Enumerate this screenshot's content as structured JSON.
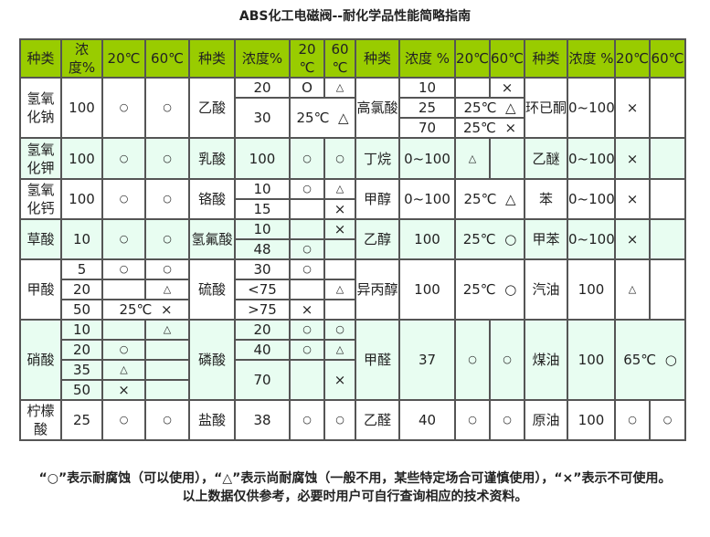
{
  "title": "ABS化工电磁阀--耐化学品性能简略指南",
  "t": {
    "h": [
      "种类",
      "浓度%",
      "20℃",
      "60℃",
      "种类",
      "浓度%",
      "20 ℃",
      "60 ℃",
      "种类",
      "浓度 %",
      "20℃",
      "60℃",
      "种类",
      "浓度 %",
      "20℃",
      "60℃"
    ],
    "r1": [
      "氢氧化钠",
      "100",
      "○",
      "○",
      "乙酸",
      "20",
      "O",
      "△",
      "高氯酸",
      "10",
      "",
      "×",
      "环已酮",
      "0~100",
      "×",
      ""
    ],
    "r2": [
      "30",
      "25℃  △",
      "25",
      "25℃  △"
    ],
    "r3": [
      "70",
      "25℃  ×"
    ],
    "r4": [
      "氢氧化钾",
      "100",
      "○",
      "○",
      "乳酸",
      "100",
      "○",
      "○",
      "丁烷",
      "0~100",
      "△",
      "",
      "乙醚",
      "0~100",
      "×",
      ""
    ],
    "r5": [
      "氢氧化钙",
      "100",
      "○",
      "○",
      "铬酸",
      "10",
      "○",
      "△",
      "甲醇",
      "0~100",
      "25℃  △",
      "苯",
      "0~100",
      "×",
      ""
    ],
    "r6": [
      "15",
      "",
      "×"
    ],
    "r7": [
      "草酸",
      "10",
      "○",
      "○",
      "氢氟酸",
      "10",
      "",
      "×",
      "乙醇",
      "100",
      "25℃  ○",
      "甲苯",
      "0~100",
      "×",
      ""
    ],
    "r8": [
      "48",
      "○",
      ""
    ],
    "r9": [
      "甲酸",
      "5",
      "○",
      "○",
      "硫酸",
      "30",
      "○",
      "",
      "异丙醇",
      "100",
      "25℃  ○",
      "汽油",
      "100",
      "△",
      ""
    ],
    "r10": [
      "20",
      "",
      "△",
      "<75",
      "",
      "△"
    ],
    "r11": [
      "50",
      "25℃  ×",
      ">75",
      "×",
      ""
    ],
    "r12": [
      "硝酸",
      "10",
      "",
      "△",
      "磷酸",
      "20",
      "○",
      "○",
      "甲醛",
      "37",
      "○",
      "○",
      "煤油",
      "100",
      "65℃  ○"
    ],
    "r13": [
      "20",
      "○",
      "",
      "40",
      "○",
      "△"
    ],
    "r14": [
      "35",
      "△",
      "",
      "70",
      "",
      "×"
    ],
    "r15": [
      "50",
      "×",
      ""
    ],
    "r16": [
      "柠檬酸",
      "25",
      "○",
      "○",
      "盐酸",
      "38",
      "○",
      "○",
      "乙醛",
      "40",
      "○",
      "○",
      "原油",
      "100",
      "○",
      "○"
    ]
  },
  "notes": [
    "“○”表示耐腐蚀（可以使用），“△”表示尚耐腐蚀（一般不用，某些特定场合可谨慎使用），“×”表示不可使用。",
    "以上数据仅供参考，必要时用户可自行查询相应的技术资料。"
  ],
  "colors": {
    "header": "#99cc00",
    "alt_row": "#e8fdf1",
    "border": "#555555"
  }
}
